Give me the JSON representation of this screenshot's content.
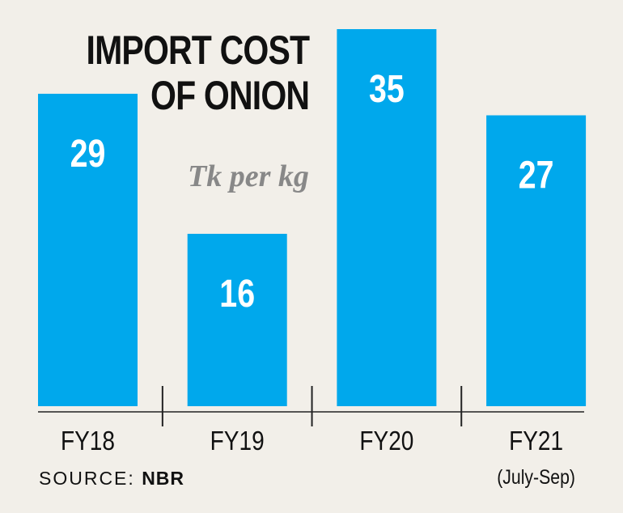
{
  "title_line1": "IMPORT COST",
  "title_line2": "OF ONION",
  "unit_label": "Tk per kg",
  "source_label": "SOURCE:",
  "source_name": "NBR",
  "colors": {
    "bar": "#00a8ec",
    "background": "#f2efe9",
    "text": "#111111",
    "unit": "#888888"
  },
  "chart_data": {
    "type": "bar",
    "title": "IMPORT COST OF ONION",
    "ylabel": "Tk per kg",
    "categories": [
      "FY18",
      "FY19",
      "FY20",
      "FY21"
    ],
    "category_notes": [
      "",
      "",
      "",
      "(July-Sep)"
    ],
    "values": [
      29,
      16,
      35,
      27
    ],
    "ylim": [
      0,
      35
    ],
    "grid": false,
    "legend": "none"
  }
}
